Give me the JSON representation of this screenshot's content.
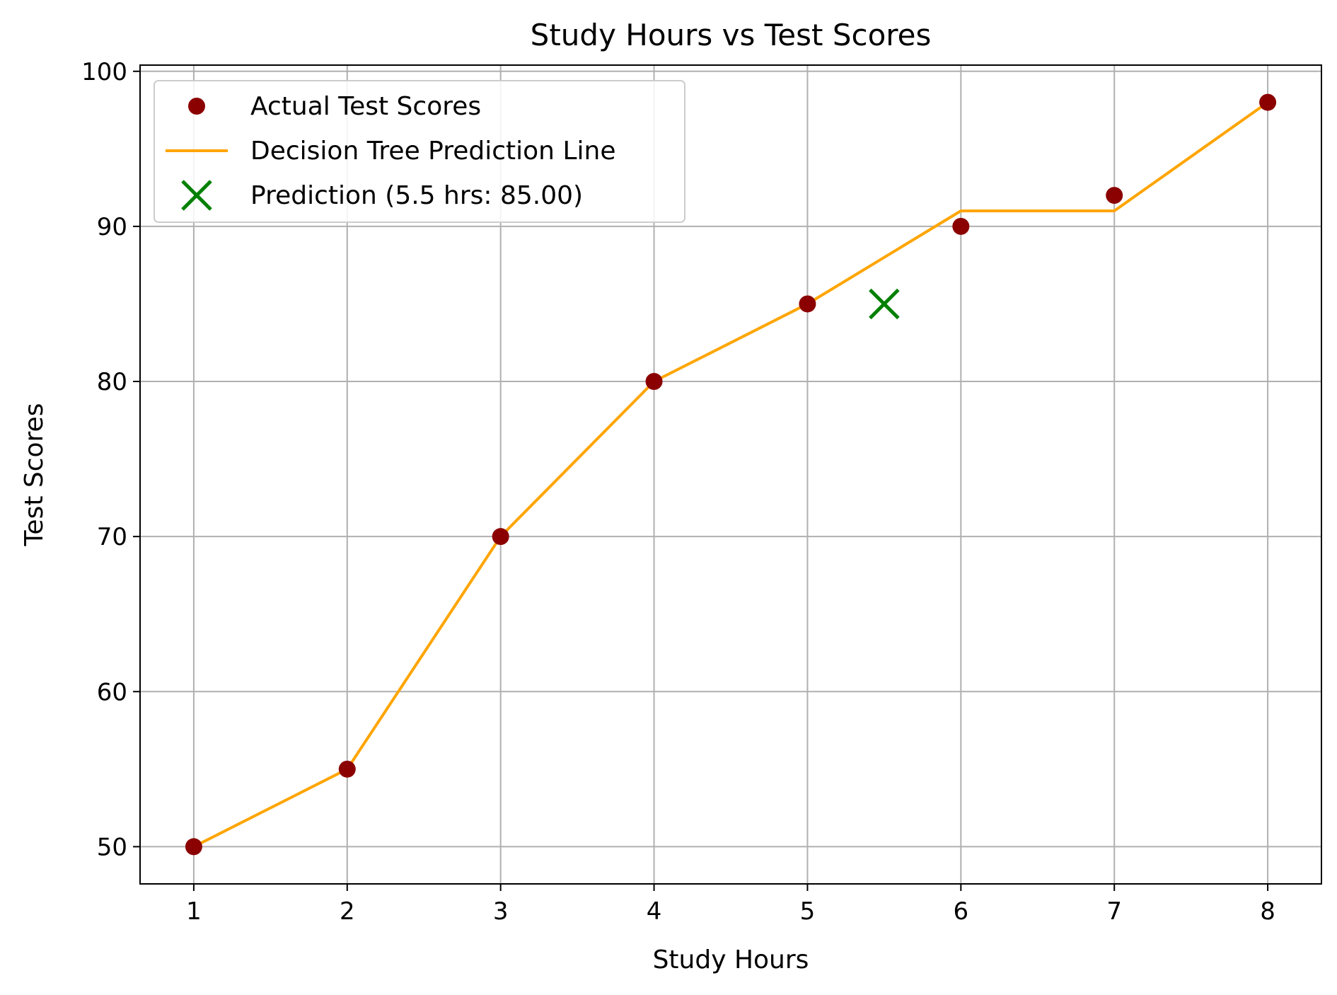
{
  "chart_data": {
    "type": "scatter",
    "title": "Study Hours vs Test Scores",
    "xlabel": "Study Hours",
    "ylabel": "Test Scores",
    "xlim": [
      0.65,
      8.35
    ],
    "ylim": [
      47.6,
      100.4
    ],
    "xticks": [
      1,
      2,
      3,
      4,
      5,
      6,
      7,
      8
    ],
    "yticks": [
      50,
      60,
      70,
      80,
      90,
      100
    ],
    "grid": true,
    "legend_position": "top-left",
    "series": [
      {
        "name": "Actual Test Scores",
        "kind": "scatter",
        "color": "#8b0000",
        "x": [
          1,
          2,
          3,
          4,
          5,
          6,
          7,
          8
        ],
        "y": [
          50,
          55,
          70,
          80,
          85,
          90,
          92,
          98
        ]
      },
      {
        "name": "Decision Tree Prediction Line",
        "kind": "line",
        "color": "#ffa500",
        "x": [
          1,
          2,
          3,
          4,
          5,
          6,
          7,
          8
        ],
        "y": [
          50,
          55,
          70,
          80,
          85,
          91,
          91,
          98
        ]
      },
      {
        "name": "Prediction (5.5 hrs: 85.00)",
        "kind": "marker-x",
        "color": "#008000",
        "x": [
          5.5
        ],
        "y": [
          85
        ]
      }
    ]
  }
}
